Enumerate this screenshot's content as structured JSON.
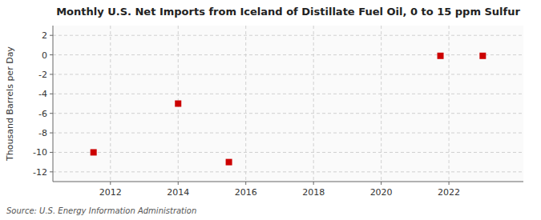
{
  "chart_data": {
    "type": "scatter",
    "title": "Monthly U.S. Net Imports from Iceland of Distillate Fuel Oil, 0 to 15 ppm Sulfur",
    "ylabel": "Thousand Barrels per Day",
    "source": "Source: U.S. Energy Information Administration",
    "x": [
      2011.5,
      2014.0,
      2015.5,
      2021.75,
      2023.0
    ],
    "values": [
      -10.0,
      -5.0,
      -11.0,
      -0.1,
      -0.1
    ],
    "color": "#cc0000",
    "marker": "square",
    "xlim": [
      2010.3,
      2024.2
    ],
    "ylim": [
      -13,
      3
    ],
    "xticks": [
      2012,
      2014,
      2016,
      2018,
      2020,
      2022
    ],
    "yticks": [
      2,
      0,
      -2,
      -4,
      -6,
      -8,
      -10,
      -12
    ],
    "grid": true
  }
}
